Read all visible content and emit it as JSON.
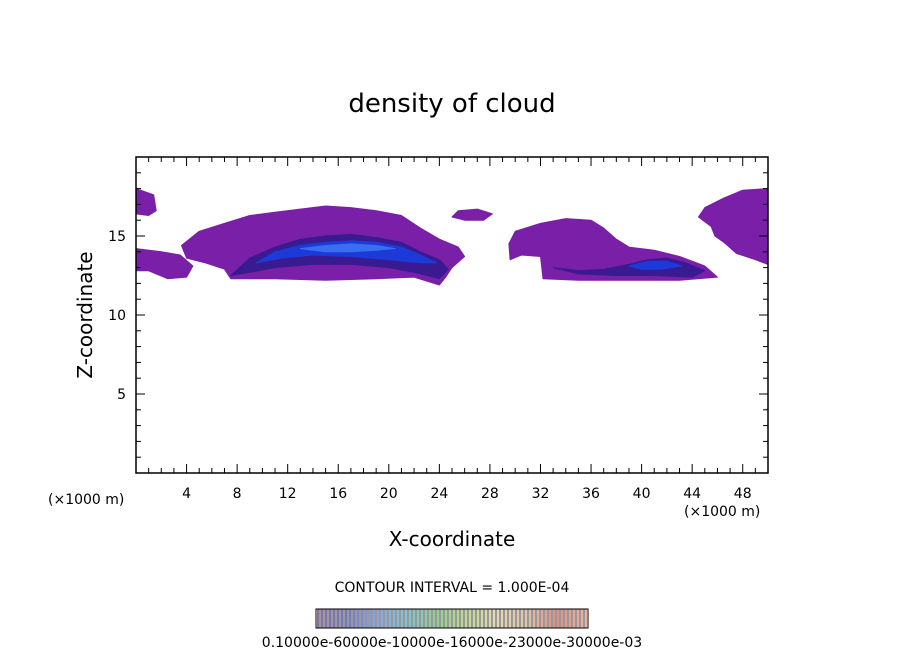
{
  "chart_data": {
    "type": "heatmap",
    "title": "density of cloud",
    "xlabel": "X-coordinate",
    "ylabel": "Z-coordinate",
    "x_unit_left": "(×1000 m)",
    "x_unit_right": "(×1000 m)",
    "xlim": [
      0,
      50
    ],
    "ylim": [
      0,
      20
    ],
    "x_ticks": [
      4,
      8,
      12,
      16,
      20,
      24,
      28,
      32,
      36,
      40,
      44,
      48
    ],
    "x_tick_labels": [
      "4",
      "8",
      "12",
      "16",
      "20",
      "24",
      "28",
      "32",
      "36",
      "40",
      "44",
      "48"
    ],
    "y_ticks": [
      5,
      10,
      15
    ],
    "y_tick_labels": [
      "5",
      "10",
      "15"
    ],
    "contour_interval_text": "CONTOUR INTERVAL = 1.000E-04",
    "colorbar_labels_text": "0.10000e-60000e-10000e-16000e-23000e-30000e-03",
    "colorbar_colors": [
      "#3a1466",
      "#1a1aa0",
      "#3a6ad8",
      "#2aa0b0",
      "#4ab04a",
      "#9ac040",
      "#d0c080",
      "#d09a70",
      "#d04030",
      "#e08060"
    ],
    "regions": [
      {
        "name": "left-edge",
        "level": 1,
        "polygon": [
          [
            0,
            12.8
          ],
          [
            0,
            14.2
          ],
          [
            2,
            14.0
          ],
          [
            3.5,
            13.8
          ],
          [
            4.5,
            13.1
          ],
          [
            4,
            12.4
          ],
          [
            2.5,
            12.3
          ],
          [
            1,
            12.8
          ]
        ]
      },
      {
        "name": "left-top",
        "level": 1,
        "polygon": [
          [
            0,
            16.4
          ],
          [
            0,
            18.0
          ],
          [
            1.4,
            17.6
          ],
          [
            1.6,
            16.6
          ],
          [
            1.0,
            16.3
          ]
        ]
      },
      {
        "name": "main-outer",
        "level": 1,
        "polygon": [
          [
            3.6,
            14.4
          ],
          [
            5,
            15.3
          ],
          [
            7,
            15.8
          ],
          [
            9,
            16.3
          ],
          [
            11,
            16.5
          ],
          [
            13,
            16.7
          ],
          [
            15,
            16.9
          ],
          [
            17,
            16.8
          ],
          [
            19,
            16.6
          ],
          [
            21,
            16.3
          ],
          [
            22.5,
            15.5
          ],
          [
            24,
            14.8
          ],
          [
            25.5,
            14.3
          ],
          [
            26,
            13.7
          ],
          [
            25,
            13.0
          ],
          [
            24.5,
            12.4
          ],
          [
            24,
            11.9
          ],
          [
            22,
            12.4
          ],
          [
            19,
            12.3
          ],
          [
            15,
            12.2
          ],
          [
            11,
            12.3
          ],
          [
            7.5,
            12.3
          ],
          [
            7,
            12.9
          ],
          [
            5.5,
            13.3
          ],
          [
            4.0,
            13.6
          ]
        ]
      },
      {
        "name": "main-inner-1",
        "level": 3,
        "polygon": [
          [
            7.5,
            12.5
          ],
          [
            9,
            13.6
          ],
          [
            11,
            14.3
          ],
          [
            13,
            14.8
          ],
          [
            15,
            15.0
          ],
          [
            17,
            15.1
          ],
          [
            19,
            14.9
          ],
          [
            21,
            14.6
          ],
          [
            22.5,
            14.0
          ],
          [
            24,
            13.5
          ],
          [
            24.7,
            12.9
          ],
          [
            24,
            12.3
          ],
          [
            22,
            12.7
          ],
          [
            20,
            13.0
          ],
          [
            17,
            13.2
          ],
          [
            14,
            13.2
          ],
          [
            11,
            13.0
          ],
          [
            9,
            12.7
          ]
        ]
      },
      {
        "name": "main-inner-2",
        "level": 5,
        "polygon": [
          [
            9.5,
            13.3
          ],
          [
            11,
            14.0
          ],
          [
            13,
            14.4
          ],
          [
            15,
            14.6
          ],
          [
            17,
            14.7
          ],
          [
            19,
            14.6
          ],
          [
            21,
            14.3
          ],
          [
            22.5,
            13.8
          ],
          [
            23.8,
            13.3
          ],
          [
            22.5,
            13.3
          ],
          [
            20,
            13.5
          ],
          [
            17,
            13.7
          ],
          [
            14,
            13.8
          ],
          [
            11.5,
            13.6
          ]
        ]
      },
      {
        "name": "main-inner-3",
        "level": 6,
        "polygon": [
          [
            13,
            14.2
          ],
          [
            15,
            14.4
          ],
          [
            17,
            14.5
          ],
          [
            19,
            14.4
          ],
          [
            20.5,
            14.2
          ],
          [
            19,
            14.1
          ],
          [
            17,
            14.0
          ],
          [
            15,
            14.0
          ]
        ]
      },
      {
        "name": "mid-small",
        "level": 1,
        "polygon": [
          [
            25,
            16.2
          ],
          [
            25.5,
            16.6
          ],
          [
            27,
            16.7
          ],
          [
            28.2,
            16.4
          ],
          [
            27.5,
            16.0
          ],
          [
            26,
            16.0
          ]
        ]
      },
      {
        "name": "mid-right",
        "level": 1,
        "polygon": [
          [
            29.5,
            14.5
          ],
          [
            30,
            15.3
          ],
          [
            32,
            15.8
          ],
          [
            34,
            16.1
          ],
          [
            36,
            16.0
          ],
          [
            37,
            15.5
          ],
          [
            38,
            14.8
          ],
          [
            39,
            14.3
          ],
          [
            41,
            14.1
          ],
          [
            43,
            13.7
          ],
          [
            45,
            13.1
          ],
          [
            46,
            12.4
          ],
          [
            43,
            12.2
          ],
          [
            39,
            12.2
          ],
          [
            35,
            12.2
          ],
          [
            32.2,
            12.3
          ],
          [
            32,
            13.7
          ],
          [
            30.5,
            13.8
          ],
          [
            29.6,
            13.5
          ]
        ]
      },
      {
        "name": "mid-right-inner",
        "level": 3,
        "polygon": [
          [
            33,
            13.0
          ],
          [
            35,
            12.8
          ],
          [
            37,
            12.9
          ],
          [
            39,
            13.2
          ],
          [
            40.5,
            13.5
          ],
          [
            42,
            13.6
          ],
          [
            43.5,
            13.3
          ],
          [
            45,
            12.8
          ],
          [
            44,
            12.4
          ],
          [
            41,
            12.5
          ],
          [
            38,
            12.5
          ],
          [
            35,
            12.6
          ]
        ]
      },
      {
        "name": "mid-right-inner-2",
        "level": 5,
        "polygon": [
          [
            39,
            13.1
          ],
          [
            40.5,
            13.4
          ],
          [
            42,
            13.4
          ],
          [
            43.2,
            13.1
          ],
          [
            41.5,
            12.9
          ],
          [
            40,
            12.9
          ]
        ]
      },
      {
        "name": "right-edge",
        "level": 1,
        "polygon": [
          [
            44.5,
            16.2
          ],
          [
            45,
            16.8
          ],
          [
            46.5,
            17.4
          ],
          [
            48,
            17.9
          ],
          [
            50,
            18.0
          ],
          [
            50,
            13.2
          ],
          [
            49,
            13.5
          ],
          [
            47.5,
            13.9
          ],
          [
            46.5,
            14.6
          ],
          [
            45.8,
            15.0
          ],
          [
            45.5,
            15.6
          ]
        ]
      }
    ]
  }
}
